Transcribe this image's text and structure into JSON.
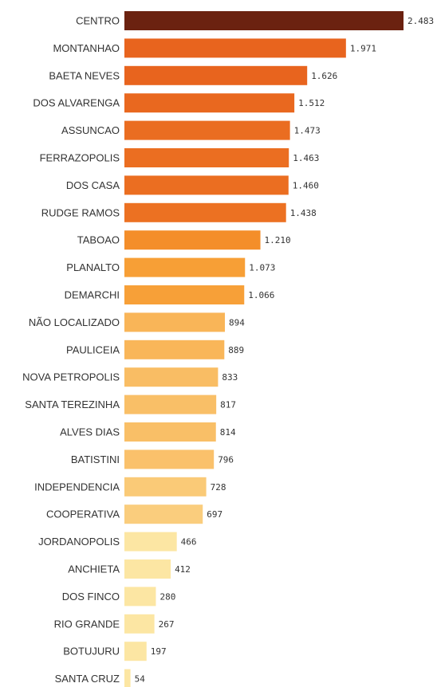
{
  "chart_data": {
    "type": "bar",
    "orientation": "horizontal",
    "categories": [
      "CENTRO",
      "MONTANHAO",
      "BAETA NEVES",
      "DOS ALVARENGA",
      "ASSUNCAO",
      "FERRAZOPOLIS",
      "DOS CASA",
      "RUDGE RAMOS",
      "TABOAO",
      "PLANALTO",
      "DEMARCHI",
      "NÃO LOCALIZADO",
      "PAULICEIA",
      "NOVA PETROPOLIS",
      "SANTA TEREZINHA",
      "ALVES DIAS",
      "BATISTINI",
      "INDEPENDENCIA",
      "COOPERATIVA",
      "JORDANOPOLIS",
      "ANCHIETA",
      "DOS FINCO",
      "RIO GRANDE",
      "BOTUJURU",
      "SANTA CRUZ"
    ],
    "values": [
      2483,
      1971,
      1626,
      1512,
      1473,
      1463,
      1460,
      1438,
      1210,
      1073,
      1066,
      894,
      889,
      833,
      817,
      814,
      796,
      728,
      697,
      466,
      412,
      280,
      267,
      197,
      54
    ],
    "value_labels": [
      "2.483",
      "1.971",
      "1.626",
      "1.512",
      "1.473",
      "1.463",
      "1.460",
      "1.438",
      "1.210",
      "1.073",
      "1.066",
      "894",
      "889",
      "833",
      "817",
      "814",
      "796",
      "728",
      "697",
      "466",
      "412",
      "280",
      "267",
      "197",
      "54"
    ],
    "title": "",
    "xlabel": "",
    "ylabel": "",
    "xlim": [
      0,
      2483
    ],
    "grid": false,
    "legend": "none",
    "color_scale": {
      "low": "#fce6a3",
      "mid": "#f79a2e",
      "high": "#e8641e",
      "max": "#6b2210"
    }
  }
}
